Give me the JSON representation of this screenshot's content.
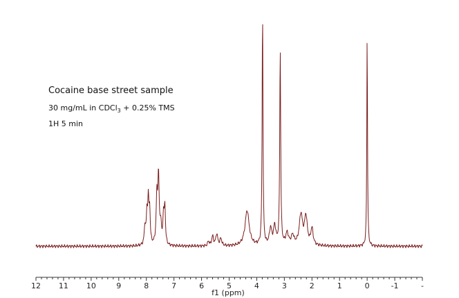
{
  "chart_data": {
    "type": "line",
    "title": "Cocaine base street sample",
    "annotations": {
      "conc_prefix": "30 mg/mL in CDCl",
      "conc_sub": "3",
      "conc_suffix": " + 0.25% TMS",
      "experiment": "1H 5 min"
    },
    "xlabel": "f1 (ppm)",
    "ylabel": "",
    "x_axis_reversed": true,
    "xlim": [
      12,
      -2
    ],
    "tick_labels": [
      "12",
      "11",
      "10",
      "9",
      "8",
      "7",
      "6",
      "5",
      "4",
      "3",
      "2",
      "1",
      "0",
      "-1",
      "-"
    ],
    "ylim": [
      0,
      1
    ],
    "grid": false,
    "colors": {
      "spectrum": "#7a1c1c",
      "axis": "#333333"
    },
    "series": [
      {
        "peaks": [
          {
            "ppm": 8.05,
            "height": 0.08,
            "width": 0.03
          },
          {
            "ppm": 7.98,
            "height": 0.12,
            "width": 0.025
          },
          {
            "ppm": 7.93,
            "height": 0.18,
            "width": 0.025
          },
          {
            "ppm": 7.88,
            "height": 0.14,
            "width": 0.025
          },
          {
            "ppm": 7.62,
            "height": 0.19,
            "width": 0.03
          },
          {
            "ppm": 7.56,
            "height": 0.28,
            "width": 0.03
          },
          {
            "ppm": 7.48,
            "height": 0.08,
            "width": 0.03
          },
          {
            "ppm": 7.38,
            "height": 0.12,
            "width": 0.025
          },
          {
            "ppm": 7.33,
            "height": 0.16,
            "width": 0.025
          },
          {
            "ppm": 5.75,
            "height": 0.02,
            "width": 0.03
          },
          {
            "ppm": 5.6,
            "height": 0.04,
            "width": 0.04
          },
          {
            "ppm": 5.45,
            "height": 0.05,
            "width": 0.04
          },
          {
            "ppm": 5.3,
            "height": 0.03,
            "width": 0.04
          },
          {
            "ppm": 4.35,
            "height": 0.15,
            "width": 0.09
          },
          {
            "ppm": 3.79,
            "height": 1.0,
            "width": 0.018
          },
          {
            "ppm": 3.5,
            "height": 0.07,
            "width": 0.05
          },
          {
            "ppm": 3.35,
            "height": 0.08,
            "width": 0.05
          },
          {
            "ppm": 3.15,
            "height": 0.83,
            "width": 0.02
          },
          {
            "ppm": 2.9,
            "height": 0.05,
            "width": 0.06
          },
          {
            "ppm": 2.7,
            "height": 0.04,
            "width": 0.06
          },
          {
            "ppm": 2.4,
            "height": 0.13,
            "width": 0.07
          },
          {
            "ppm": 2.22,
            "height": 0.12,
            "width": 0.06
          },
          {
            "ppm": 2.0,
            "height": 0.07,
            "width": 0.05
          },
          {
            "ppm": 0.0,
            "height": 0.91,
            "width": 0.015
          }
        ]
      }
    ]
  }
}
